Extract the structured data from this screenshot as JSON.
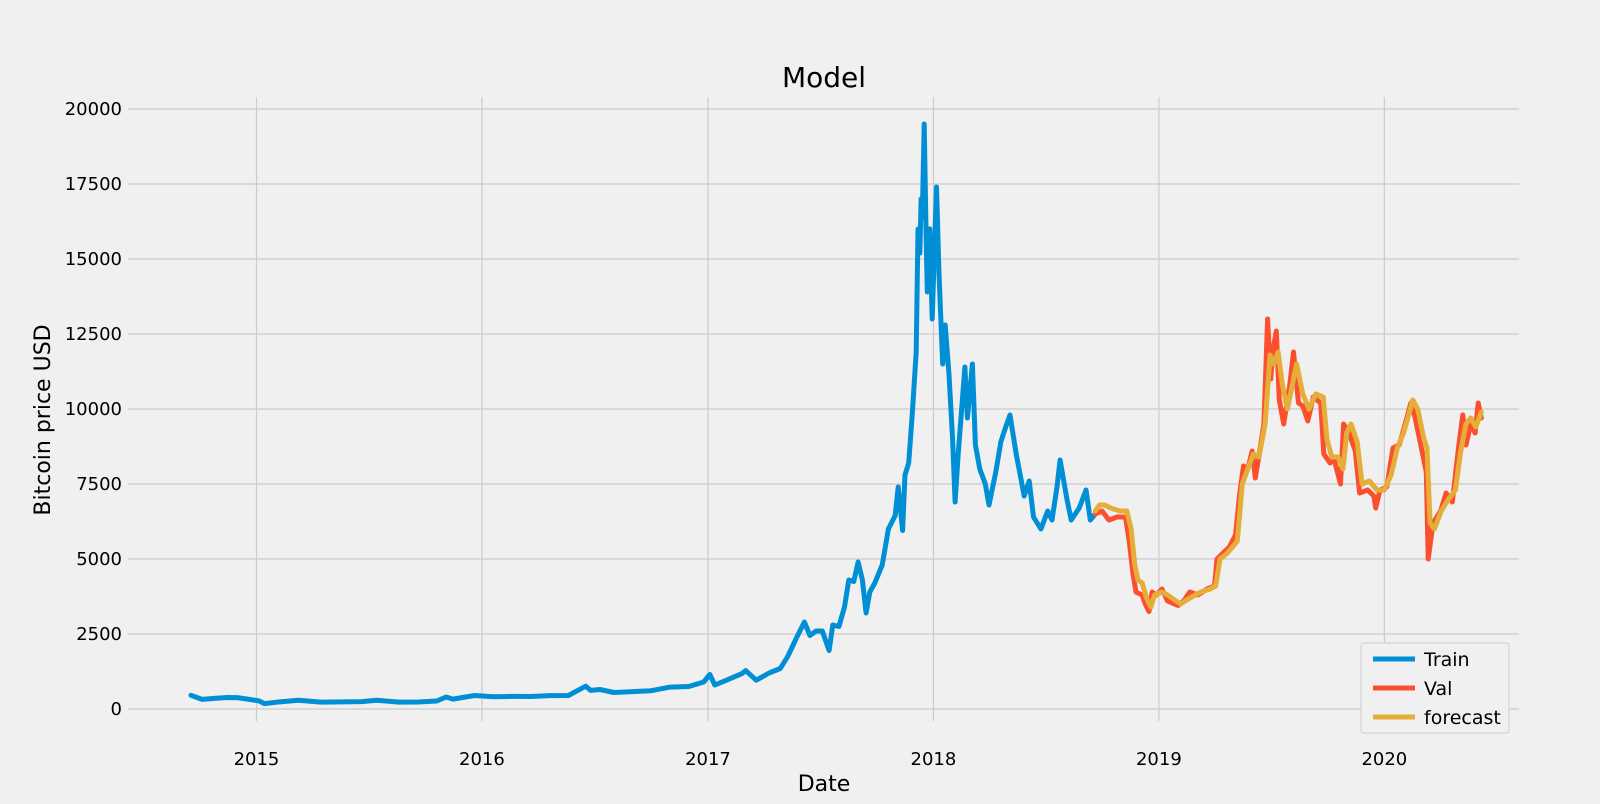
{
  "chart_data": {
    "type": "line",
    "title": "Model",
    "xlabel": "Date",
    "ylabel": "Bitcoin price USD",
    "xlim": [
      "2014-06-07",
      "2020-08-06"
    ],
    "ylim": [
      -400,
      20400
    ],
    "x_ticks": [
      "2015-01-01",
      "2016-01-01",
      "2017-01-01",
      "2018-01-01",
      "2019-01-01",
      "2020-01-01"
    ],
    "x_tick_labels": [
      "2015",
      "2016",
      "2017",
      "2018",
      "2019",
      "2020"
    ],
    "y_ticks": [
      0,
      2500,
      5000,
      7500,
      10000,
      12500,
      15000,
      17500,
      20000
    ],
    "y_tick_labels": [
      "0",
      "2500",
      "5000",
      "7500",
      "10000",
      "12500",
      "15000",
      "17500",
      "20000"
    ],
    "grid": true,
    "legend_position": "lower-right",
    "series": [
      {
        "name": "Train",
        "color": "#008fd5",
        "points": [
          [
            "2014-09-17",
            457
          ],
          [
            "2014-10-05",
            320
          ],
          [
            "2014-10-25",
            355
          ],
          [
            "2014-11-15",
            385
          ],
          [
            "2014-12-01",
            380
          ],
          [
            "2014-12-20",
            320
          ],
          [
            "2015-01-05",
            270
          ],
          [
            "2015-01-14",
            180
          ],
          [
            "2015-02-01",
            225
          ],
          [
            "2015-03-10",
            290
          ],
          [
            "2015-04-15",
            230
          ],
          [
            "2015-05-20",
            237
          ],
          [
            "2015-06-20",
            245
          ],
          [
            "2015-07-15",
            290
          ],
          [
            "2015-08-20",
            230
          ],
          [
            "2015-09-20",
            232
          ],
          [
            "2015-10-20",
            265
          ],
          [
            "2015-11-04",
            400
          ],
          [
            "2015-11-15",
            330
          ],
          [
            "2015-12-20",
            450
          ],
          [
            "2016-01-20",
            410
          ],
          [
            "2016-02-20",
            420
          ],
          [
            "2016-03-20",
            415
          ],
          [
            "2016-04-20",
            445
          ],
          [
            "2016-05-20",
            450
          ],
          [
            "2016-06-17",
            760
          ],
          [
            "2016-06-25",
            620
          ],
          [
            "2016-07-10",
            650
          ],
          [
            "2016-08-02",
            550
          ],
          [
            "2016-09-01",
            580
          ],
          [
            "2016-10-01",
            610
          ],
          [
            "2016-11-01",
            730
          ],
          [
            "2016-12-01",
            750
          ],
          [
            "2016-12-25",
            900
          ],
          [
            "2017-01-04",
            1150
          ],
          [
            "2017-01-12",
            800
          ],
          [
            "2017-02-01",
            970
          ],
          [
            "2017-02-25",
            1180
          ],
          [
            "2017-03-03",
            1280
          ],
          [
            "2017-03-10",
            1150
          ],
          [
            "2017-03-20",
            960
          ],
          [
            "2017-03-28",
            1050
          ],
          [
            "2017-04-10",
            1200
          ],
          [
            "2017-04-28",
            1350
          ],
          [
            "2017-05-10",
            1750
          ],
          [
            "2017-05-25",
            2400
          ],
          [
            "2017-06-06",
            2900
          ],
          [
            "2017-06-15",
            2450
          ],
          [
            "2017-06-25",
            2600
          ],
          [
            "2017-07-05",
            2600
          ],
          [
            "2017-07-16",
            1950
          ],
          [
            "2017-07-22",
            2800
          ],
          [
            "2017-08-01",
            2750
          ],
          [
            "2017-08-10",
            3400
          ],
          [
            "2017-08-17",
            4300
          ],
          [
            "2017-08-25",
            4250
          ],
          [
            "2017-09-01",
            4900
          ],
          [
            "2017-09-08",
            4300
          ],
          [
            "2017-09-14",
            3200
          ],
          [
            "2017-09-20",
            3900
          ],
          [
            "2017-09-28",
            4200
          ],
          [
            "2017-10-10",
            4800
          ],
          [
            "2017-10-20",
            6000
          ],
          [
            "2017-10-31",
            6450
          ],
          [
            "2017-11-05",
            7400
          ],
          [
            "2017-11-12",
            5950
          ],
          [
            "2017-11-16",
            7800
          ],
          [
            "2017-11-22",
            8200
          ],
          [
            "2017-11-28",
            9900
          ],
          [
            "2017-12-01",
            10900
          ],
          [
            "2017-12-04",
            11900
          ],
          [
            "2017-12-07",
            16000
          ],
          [
            "2017-12-10",
            15200
          ],
          [
            "2017-12-12",
            17000
          ],
          [
            "2017-12-14",
            16400
          ],
          [
            "2017-12-17",
            19500
          ],
          [
            "2017-12-20",
            16000
          ],
          [
            "2017-12-22",
            13900
          ],
          [
            "2017-12-26",
            16000
          ],
          [
            "2017-12-30",
            13000
          ],
          [
            "2018-01-02",
            15000
          ],
          [
            "2018-01-06",
            17400
          ],
          [
            "2018-01-10",
            14500
          ],
          [
            "2018-01-16",
            11500
          ],
          [
            "2018-01-20",
            12800
          ],
          [
            "2018-01-26",
            11200
          ],
          [
            "2018-02-01",
            9000
          ],
          [
            "2018-02-05",
            6900
          ],
          [
            "2018-02-10",
            8500
          ],
          [
            "2018-02-16",
            10100
          ],
          [
            "2018-02-21",
            11400
          ],
          [
            "2018-02-25",
            9700
          ],
          [
            "2018-03-05",
            11500
          ],
          [
            "2018-03-10",
            8800
          ],
          [
            "2018-03-17",
            8000
          ],
          [
            "2018-03-26",
            7500
          ],
          [
            "2018-04-01",
            6800
          ],
          [
            "2018-04-12",
            7900
          ],
          [
            "2018-04-20",
            8900
          ],
          [
            "2018-04-28",
            9400
          ],
          [
            "2018-05-05",
            9800
          ],
          [
            "2018-05-15",
            8500
          ],
          [
            "2018-05-28",
            7100
          ],
          [
            "2018-06-05",
            7600
          ],
          [
            "2018-06-12",
            6400
          ],
          [
            "2018-06-24",
            6000
          ],
          [
            "2018-07-05",
            6600
          ],
          [
            "2018-07-12",
            6300
          ],
          [
            "2018-07-20",
            7400
          ],
          [
            "2018-07-25",
            8300
          ],
          [
            "2018-08-05",
            7000
          ],
          [
            "2018-08-12",
            6300
          ],
          [
            "2018-08-25",
            6700
          ],
          [
            "2018-09-05",
            7300
          ],
          [
            "2018-09-12",
            6300
          ],
          [
            "2018-09-20",
            6500
          ]
        ]
      },
      {
        "name": "Val",
        "color": "#fc4f30",
        "points": [
          [
            "2018-09-20",
            6500
          ],
          [
            "2018-10-01",
            6600
          ],
          [
            "2018-10-12",
            6300
          ],
          [
            "2018-10-25",
            6400
          ],
          [
            "2018-11-08",
            6400
          ],
          [
            "2018-11-14",
            5600
          ],
          [
            "2018-11-20",
            4500
          ],
          [
            "2018-11-25",
            3900
          ],
          [
            "2018-12-05",
            3800
          ],
          [
            "2018-12-10",
            3500
          ],
          [
            "2018-12-16",
            3250
          ],
          [
            "2018-12-21",
            3900
          ],
          [
            "2018-12-28",
            3800
          ],
          [
            "2019-01-06",
            4000
          ],
          [
            "2019-01-15",
            3600
          ],
          [
            "2019-02-01",
            3450
          ],
          [
            "2019-02-10",
            3600
          ],
          [
            "2019-02-20",
            3900
          ],
          [
            "2019-03-05",
            3800
          ],
          [
            "2019-03-20",
            4000
          ],
          [
            "2019-04-01",
            4100
          ],
          [
            "2019-04-05",
            5000
          ],
          [
            "2019-04-15",
            5200
          ],
          [
            "2019-04-25",
            5400
          ],
          [
            "2019-05-05",
            5800
          ],
          [
            "2019-05-12",
            7200
          ],
          [
            "2019-05-18",
            8100
          ],
          [
            "2019-05-25",
            8000
          ],
          [
            "2019-06-01",
            8600
          ],
          [
            "2019-06-06",
            7700
          ],
          [
            "2019-06-14",
            8700
          ],
          [
            "2019-06-20",
            9500
          ],
          [
            "2019-06-26",
            13000
          ],
          [
            "2019-07-01",
            11000
          ],
          [
            "2019-07-05",
            12000
          ],
          [
            "2019-07-10",
            12600
          ],
          [
            "2019-07-15",
            10300
          ],
          [
            "2019-07-22",
            9500
          ],
          [
            "2019-08-01",
            10800
          ],
          [
            "2019-08-07",
            11900
          ],
          [
            "2019-08-15",
            10200
          ],
          [
            "2019-08-22",
            10100
          ],
          [
            "2019-08-30",
            9600
          ],
          [
            "2019-09-08",
            10400
          ],
          [
            "2019-09-20",
            10200
          ],
          [
            "2019-09-25",
            8500
          ],
          [
            "2019-10-05",
            8200
          ],
          [
            "2019-10-12",
            8300
          ],
          [
            "2019-10-22",
            7500
          ],
          [
            "2019-10-27",
            9500
          ],
          [
            "2019-11-05",
            9200
          ],
          [
            "2019-11-15",
            8600
          ],
          [
            "2019-11-22",
            7200
          ],
          [
            "2019-12-05",
            7300
          ],
          [
            "2019-12-15",
            7100
          ],
          [
            "2019-12-18",
            6700
          ],
          [
            "2019-12-25",
            7300
          ],
          [
            "2020-01-05",
            7400
          ],
          [
            "2020-01-15",
            8700
          ],
          [
            "2020-01-25",
            8800
          ],
          [
            "2020-02-05",
            9600
          ],
          [
            "2020-02-13",
            10200
          ],
          [
            "2020-02-20",
            9700
          ],
          [
            "2020-03-01",
            8700
          ],
          [
            "2020-03-09",
            7900
          ],
          [
            "2020-03-12",
            5000
          ],
          [
            "2020-03-20",
            6200
          ],
          [
            "2020-04-01",
            6600
          ],
          [
            "2020-04-10",
            7200
          ],
          [
            "2020-04-20",
            6900
          ],
          [
            "2020-04-30",
            8700
          ],
          [
            "2020-05-07",
            9800
          ],
          [
            "2020-05-12",
            8800
          ],
          [
            "2020-05-20",
            9500
          ],
          [
            "2020-05-27",
            9200
          ],
          [
            "2020-06-01",
            10200
          ],
          [
            "2020-06-06",
            9700
          ]
        ]
      },
      {
        "name": "forecast",
        "color": "#e5ae38",
        "points": [
          [
            "2018-09-20",
            6600
          ],
          [
            "2018-09-27",
            6800
          ],
          [
            "2018-10-05",
            6800
          ],
          [
            "2018-10-15",
            6700
          ],
          [
            "2018-10-30",
            6600
          ],
          [
            "2018-11-10",
            6600
          ],
          [
            "2018-11-17",
            6000
          ],
          [
            "2018-11-23",
            4800
          ],
          [
            "2018-11-28",
            4300
          ],
          [
            "2018-12-05",
            4200
          ],
          [
            "2018-12-12",
            3700
          ],
          [
            "2018-12-19",
            3400
          ],
          [
            "2018-12-25",
            3800
          ],
          [
            "2019-01-06",
            3900
          ],
          [
            "2019-01-15",
            3800
          ],
          [
            "2019-02-05",
            3500
          ],
          [
            "2019-02-20",
            3700
          ],
          [
            "2019-03-10",
            3900
          ],
          [
            "2019-03-25",
            4000
          ],
          [
            "2019-04-03",
            4100
          ],
          [
            "2019-04-10",
            5000
          ],
          [
            "2019-04-22",
            5200
          ],
          [
            "2019-05-08",
            5600
          ],
          [
            "2019-05-16",
            7500
          ],
          [
            "2019-05-25",
            8000
          ],
          [
            "2019-06-03",
            8500
          ],
          [
            "2019-06-12",
            8400
          ],
          [
            "2019-06-22",
            9500
          ],
          [
            "2019-06-30",
            11800
          ],
          [
            "2019-07-06",
            11500
          ],
          [
            "2019-07-13",
            11900
          ],
          [
            "2019-07-20",
            10800
          ],
          [
            "2019-07-28",
            10000
          ],
          [
            "2019-08-05",
            10800
          ],
          [
            "2019-08-12",
            11500
          ],
          [
            "2019-08-22",
            10500
          ],
          [
            "2019-09-01",
            10000
          ],
          [
            "2019-09-12",
            10500
          ],
          [
            "2019-09-24",
            10400
          ],
          [
            "2019-09-30",
            9000
          ],
          [
            "2019-10-08",
            8400
          ],
          [
            "2019-10-18",
            8400
          ],
          [
            "2019-10-26",
            8000
          ],
          [
            "2019-11-01",
            9200
          ],
          [
            "2019-11-08",
            9500
          ],
          [
            "2019-11-18",
            8900
          ],
          [
            "2019-11-26",
            7500
          ],
          [
            "2019-12-08",
            7600
          ],
          [
            "2019-12-20",
            7300
          ],
          [
            "2020-01-01",
            7300
          ],
          [
            "2020-01-12",
            7800
          ],
          [
            "2020-01-22",
            8700
          ],
          [
            "2020-02-01",
            9200
          ],
          [
            "2020-02-08",
            9700
          ],
          [
            "2020-02-16",
            10300
          ],
          [
            "2020-02-24",
            10000
          ],
          [
            "2020-03-05",
            9000
          ],
          [
            "2020-03-10",
            8700
          ],
          [
            "2020-03-15",
            6200
          ],
          [
            "2020-03-22",
            6000
          ],
          [
            "2020-04-02",
            6600
          ],
          [
            "2020-04-14",
            7000
          ],
          [
            "2020-04-25",
            7300
          ],
          [
            "2020-05-03",
            8500
          ],
          [
            "2020-05-12",
            9500
          ],
          [
            "2020-05-20",
            9700
          ],
          [
            "2020-05-28",
            9400
          ],
          [
            "2020-06-06",
            9900
          ]
        ]
      }
    ]
  }
}
